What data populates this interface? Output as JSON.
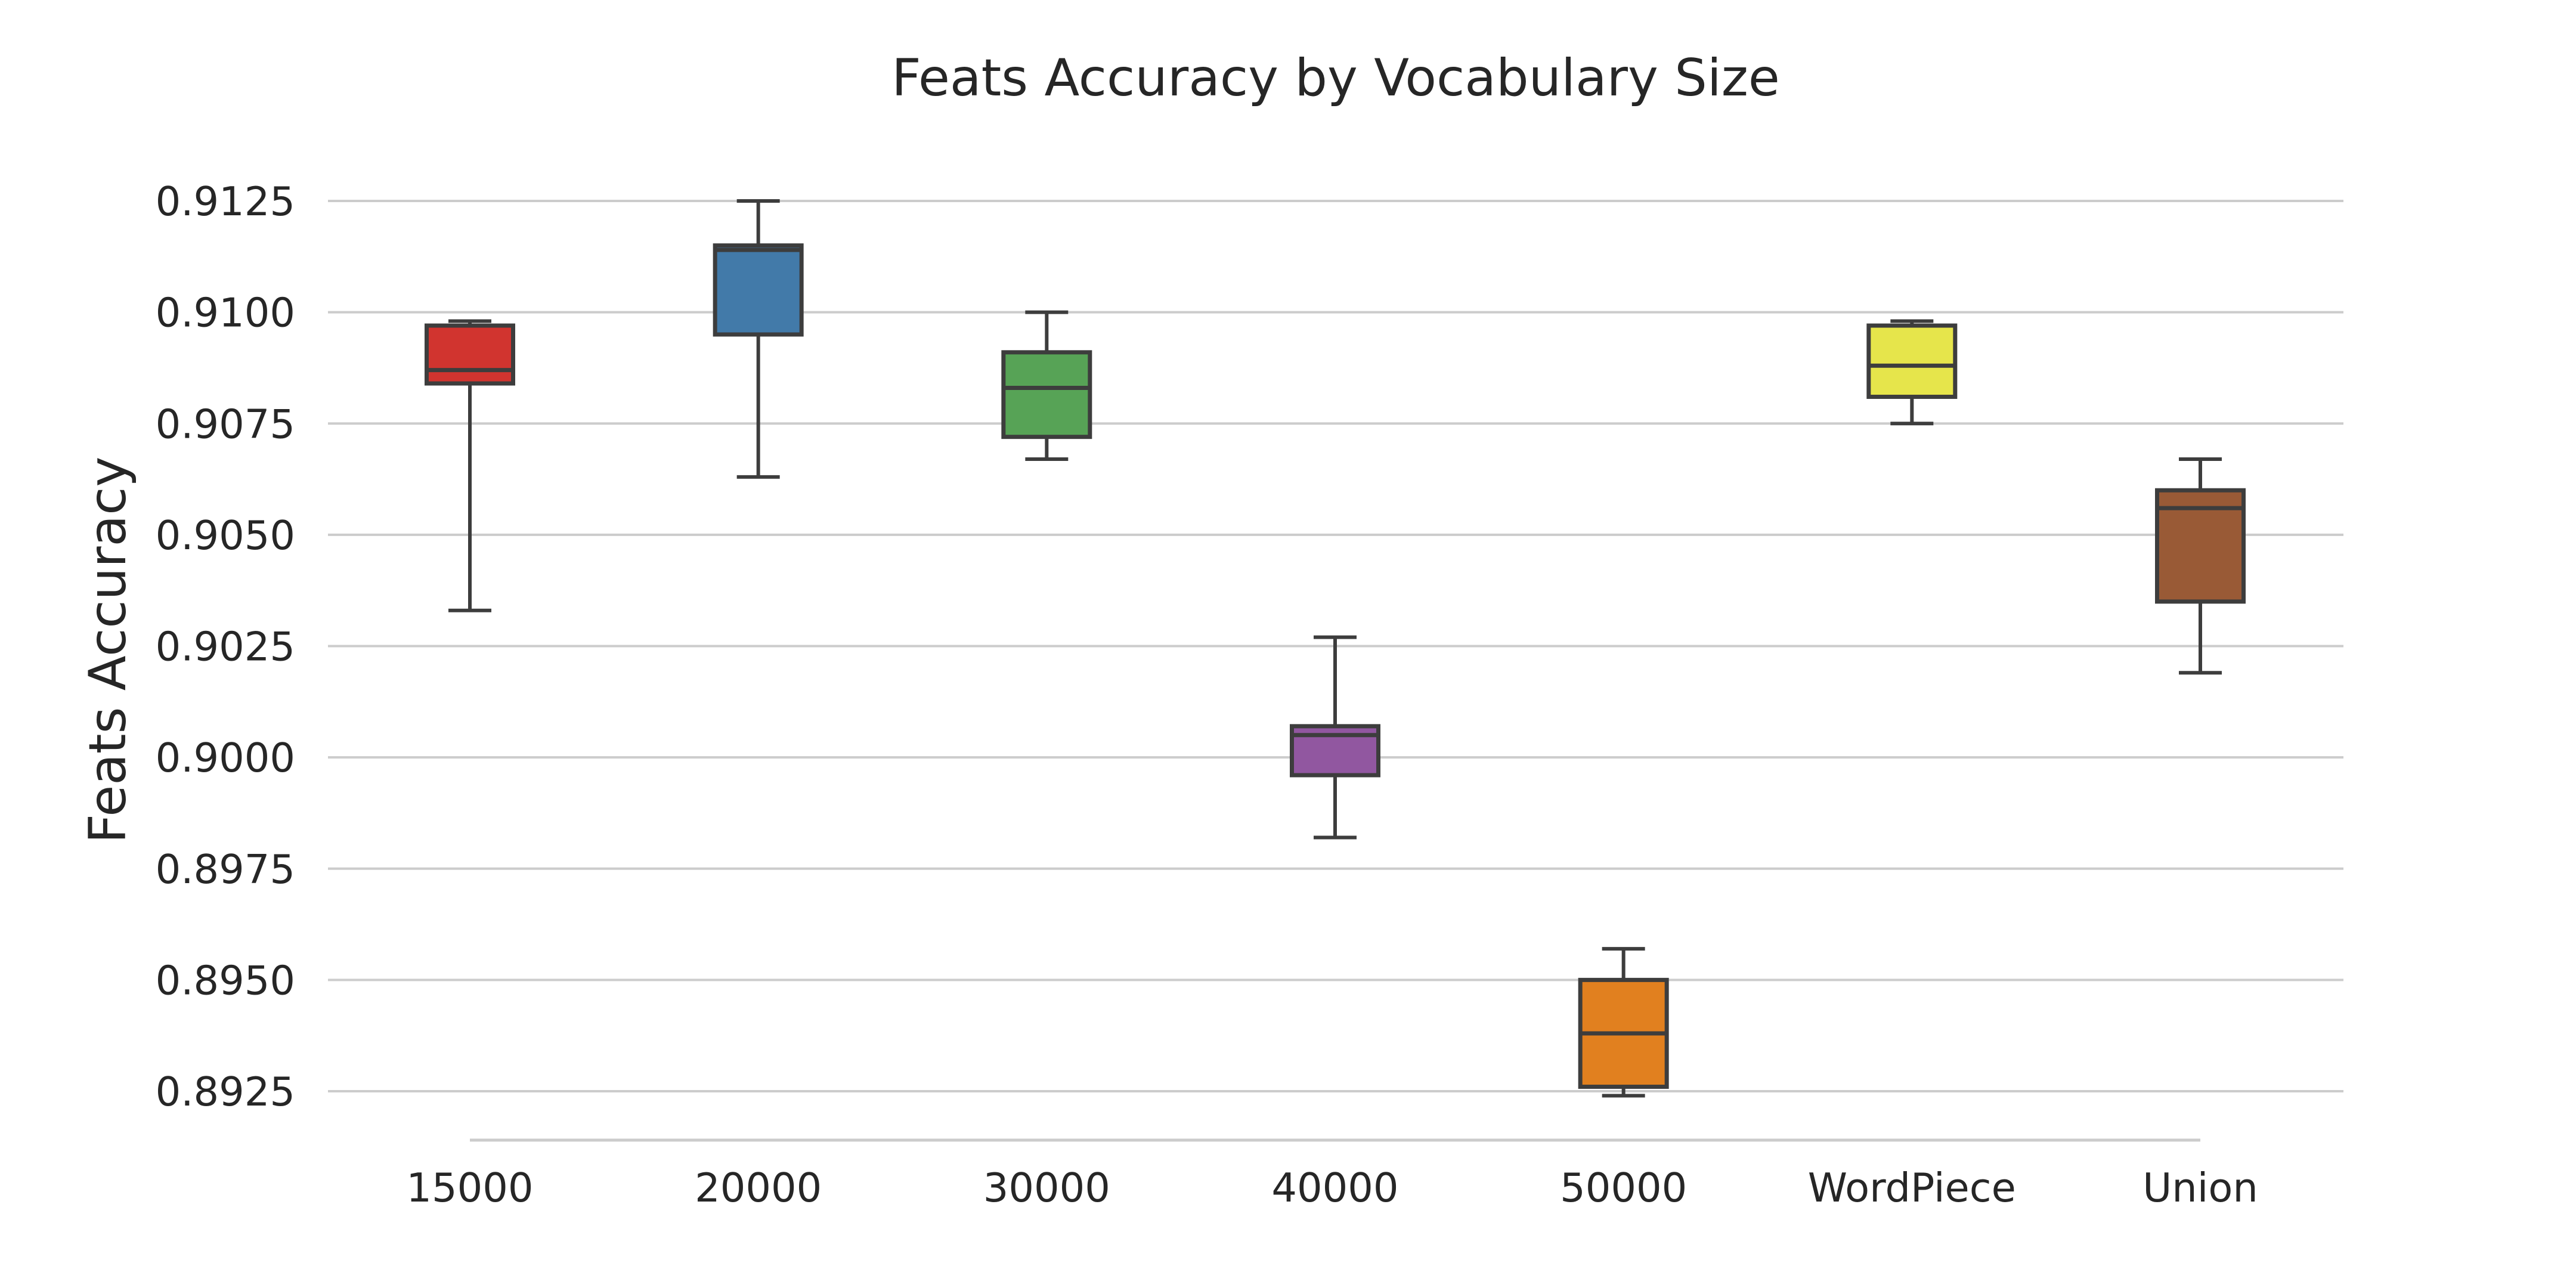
{
  "chart_data": {
    "type": "box",
    "title": "Feats Accuracy by Vocabulary Size",
    "xlabel": "",
    "ylabel": "Feats Accuracy",
    "ylim": [
      0.8915,
      0.9135
    ],
    "yticks": [
      "0.8925",
      "0.8950",
      "0.8975",
      "0.9000",
      "0.9025",
      "0.9050",
      "0.9075",
      "0.9100",
      "0.9125"
    ],
    "grid": "horizontal",
    "categories": [
      "15000",
      "20000",
      "30000",
      "40000",
      "50000",
      "WordPiece",
      "Union"
    ],
    "boxes": [
      {
        "category": "15000",
        "whisker_low": 0.9033,
        "q1": 0.9084,
        "median": 0.9087,
        "q3": 0.9097,
        "whisker_high": 0.9098,
        "color": "#d1342f"
      },
      {
        "category": "20000",
        "whisker_low": 0.9063,
        "q1": 0.9095,
        "median": 0.9114,
        "q3": 0.9115,
        "whisker_high": 0.9125,
        "color": "#427aa9"
      },
      {
        "category": "30000",
        "whisker_low": 0.9067,
        "q1": 0.9072,
        "median": 0.9083,
        "q3": 0.9091,
        "whisker_high": 0.91,
        "color": "#57a356"
      },
      {
        "category": "40000",
        "whisker_low": 0.8982,
        "q1": 0.8996,
        "median": 0.9005,
        "q3": 0.9007,
        "whisker_high": 0.9027,
        "color": "#9157a0"
      },
      {
        "category": "50000",
        "whisker_low": 0.8924,
        "q1": 0.8926,
        "median": 0.8938,
        "q3": 0.895,
        "whisker_high": 0.8957,
        "color": "#e1801f"
      },
      {
        "category": "WordPiece",
        "whisker_low": 0.9075,
        "q1": 0.9081,
        "median": 0.9088,
        "q3": 0.9097,
        "whisker_high": 0.9098,
        "color": "#e6e54b"
      },
      {
        "category": "Union",
        "whisker_low": 0.9019,
        "q1": 0.9035,
        "median": 0.9056,
        "q3": 0.906,
        "whisker_high": 0.9067,
        "color": "#995a36"
      }
    ]
  }
}
